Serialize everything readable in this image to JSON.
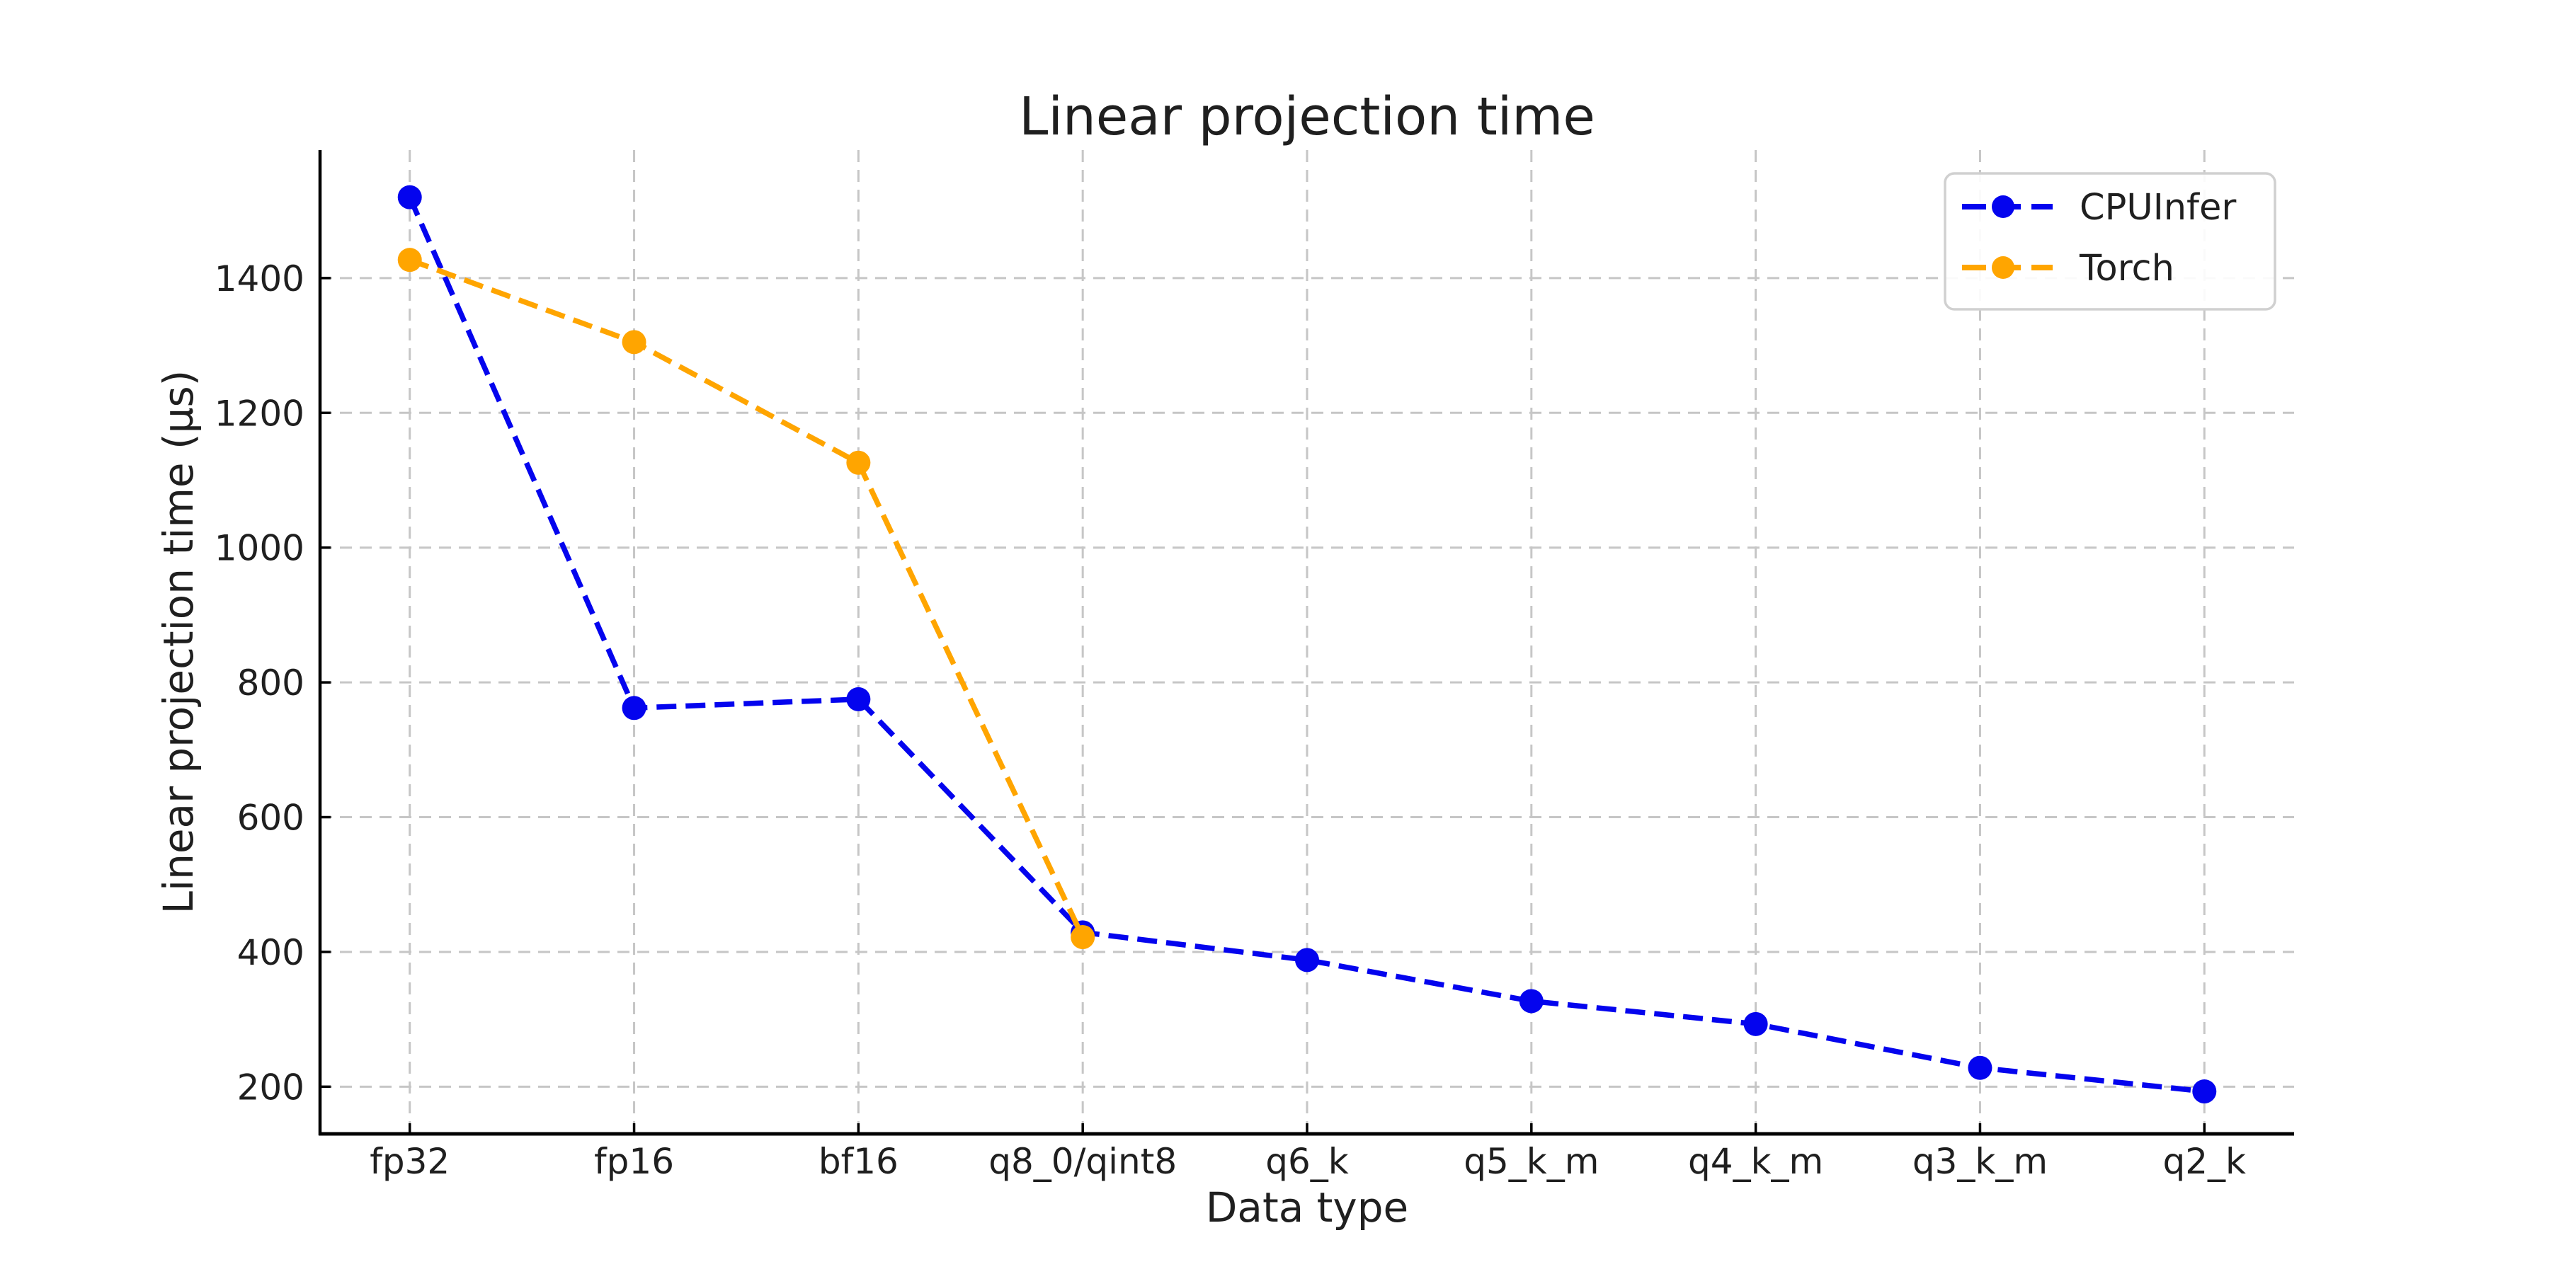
{
  "figure": {
    "background_color": "#ffffff",
    "text_color": "#1f1f1f",
    "grid_color": "#c6c6c6",
    "spine_color": "#000000",
    "legend_border_color": "#d0d0d0"
  },
  "chart_data": {
    "type": "line",
    "title": "Linear projection time",
    "xlabel": "Data type",
    "ylabel": "Linear projection time (µs)",
    "categories": [
      "fp32",
      "fp16",
      "bf16",
      "q8_0/qint8",
      "q6_k",
      "q5_k_m",
      "q4_k_m",
      "q3_k_m",
      "q2_k"
    ],
    "series": [
      {
        "name": "CPUInfer",
        "color": "#0404ee",
        "line_style": "dashed",
        "marker": "circle",
        "values": [
          1520,
          762,
          775,
          429,
          388,
          327,
          293,
          228,
          193
        ]
      },
      {
        "name": "Torch",
        "color": "#ffa500",
        "line_style": "dashed",
        "marker": "circle",
        "values": [
          1427,
          1305,
          1126,
          422,
          null,
          null,
          null,
          null,
          null
        ]
      }
    ],
    "yticks": [
      200,
      400,
      600,
      800,
      1000,
      1200,
      1400
    ],
    "ylim": [
      130,
      1590
    ],
    "xlim": [
      -0.4,
      8.4
    ],
    "grid": true,
    "grid_style": "dashed",
    "legend_position": "upper right"
  }
}
